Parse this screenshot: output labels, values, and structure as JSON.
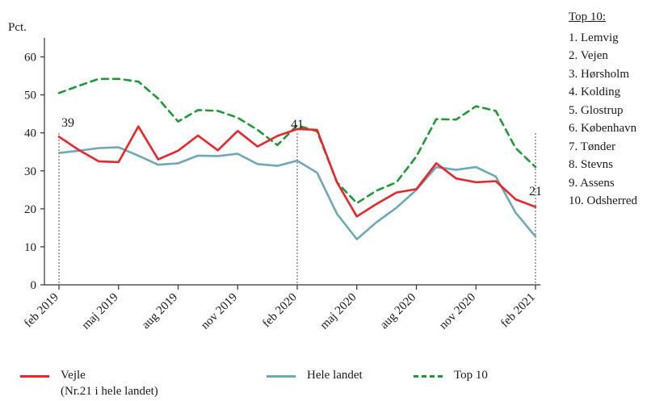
{
  "chart_data": {
    "type": "line",
    "ylabel": "Pct.",
    "ylim": [
      0,
      65
    ],
    "yticks": [
      0,
      10,
      20,
      30,
      40,
      50,
      60
    ],
    "xticks": [
      {
        "label": "feb 2019",
        "i": 0
      },
      {
        "label": "maj 2019",
        "i": 3
      },
      {
        "label": "aug 2019",
        "i": 6
      },
      {
        "label": "nov 2019",
        "i": 9
      },
      {
        "label": "feb 2020",
        "i": 12
      },
      {
        "label": "maj 2020",
        "i": 15
      },
      {
        "label": "aug 2020",
        "i": 18
      },
      {
        "label": "nov 2020",
        "i": 21
      },
      {
        "label": "feb 2021",
        "i": 24
      }
    ],
    "x": [
      "feb 2019",
      "mar 2019",
      "apr 2019",
      "maj 2019",
      "jun 2019",
      "jul 2019",
      "aug 2019",
      "sep 2019",
      "okt 2019",
      "nov 2019",
      "dec 2019",
      "jan 2020",
      "feb 2020",
      "mar 2020",
      "apr 2020",
      "maj 2020",
      "jun 2020",
      "jul 2020",
      "aug 2020",
      "sep 2020",
      "okt 2020",
      "nov 2020",
      "dec 2020",
      "jan 2021",
      "feb 2021"
    ],
    "series": [
      {
        "name": "Vejle",
        "color": "#e8262b",
        "dash": false,
        "values": [
          39,
          35.5,
          32.5,
          32.3,
          41.7,
          33,
          35.3,
          39.3,
          35.4,
          40.5,
          36.4,
          39.2,
          41,
          40.8,
          27,
          18,
          21.3,
          24.3,
          25.2,
          32,
          28,
          27,
          27.3,
          22.5,
          20.5
        ]
      },
      {
        "name": "Hele landet",
        "color": "#6fa8b6",
        "dash": false,
        "values": [
          34.7,
          35.3,
          36,
          36.2,
          34,
          31.6,
          32,
          34,
          33.9,
          34.5,
          31.8,
          31.3,
          32.7,
          29.5,
          18.7,
          12,
          16.5,
          20.3,
          25,
          31,
          30.3,
          31,
          28.5,
          19,
          12.7
        ]
      },
      {
        "name": "Top 10",
        "color": "#1f9a36",
        "dash": true,
        "values": [
          50.5,
          52.4,
          54.2,
          54.2,
          53.5,
          49,
          43,
          46,
          45.8,
          44,
          40.8,
          36.8,
          42,
          40.4,
          27,
          21.5,
          24.8,
          27,
          33.8,
          43.6,
          43.5,
          47,
          45.8,
          36,
          31
        ]
      }
    ],
    "annotations": [
      {
        "i": 0,
        "text": "39"
      },
      {
        "i": 12,
        "text": "41"
      },
      {
        "i": 24,
        "text": "21"
      }
    ],
    "legend": {
      "placement": "bottom",
      "items": [
        {
          "series": 0,
          "label": "Vejle",
          "sublabel": "(Nr.21 i hele landet)"
        },
        {
          "series": 1,
          "label": "Hele landet"
        },
        {
          "series": 2,
          "label": "Top 10"
        }
      ]
    }
  },
  "side_panel": {
    "title": "Top 10:",
    "items": [
      "1. Lemvig",
      "2. Vejen",
      "3. Hørsholm",
      "4. Kolding",
      "5. Glostrup",
      "6. København",
      "7. Tønder",
      "8. Stevns",
      "9. Assens",
      "10. Odsherred"
    ]
  }
}
